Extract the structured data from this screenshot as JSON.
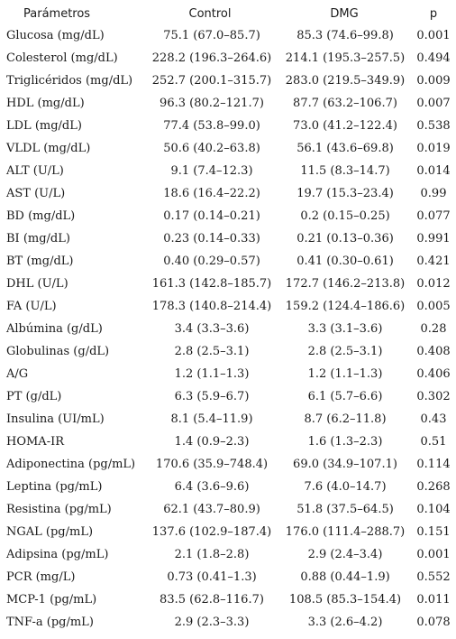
{
  "table": {
    "headers": {
      "param": "Parámetros",
      "control": "Control",
      "dmg": "DMG",
      "p": "p"
    },
    "rows": [
      {
        "param": "Glucosa (mg/dL)",
        "control": "75.1 (67.0–85.7)",
        "dmg": "85.3 (74.6–99.8)",
        "p": "0.001"
      },
      {
        "param": "Colesterol (mg/dL)",
        "control": "228.2 (196.3–264.6)",
        "dmg": "214.1 (195.3–257.5)",
        "p": "0.494"
      },
      {
        "param": "Triglicéridos (mg/dL)",
        "control": "252.7 (200.1–315.7)",
        "dmg": "283.0 (219.5–349.9)",
        "p": "0.009"
      },
      {
        "param": "HDL (mg/dL)",
        "control": "96.3 (80.2–121.7)",
        "dmg": "87.7 (63.2–106.7)",
        "p": "0.007"
      },
      {
        "param": "LDL (mg/dL)",
        "control": "77.4 (53.8–99.0)",
        "dmg": "73.0 (41.2–122.4)",
        "p": "0.538"
      },
      {
        "param": "VLDL (mg/dL)",
        "control": "50.6 (40.2–63.8)",
        "dmg": "56.1 (43.6–69.8)",
        "p": "0.019"
      },
      {
        "param": "ALT (U/L)",
        "control": "9.1 (7.4–12.3)",
        "dmg": "11.5 (8.3–14.7)",
        "p": "0.014"
      },
      {
        "param": "AST (U/L)",
        "control": "18.6 (16.4–22.2)",
        "dmg": "19.7 (15.3–23.4)",
        "p": "0.99"
      },
      {
        "param": "BD (mg/dL)",
        "control": "0.17 (0.14–0.21)",
        "dmg": "0.2 (0.15–0.25)",
        "p": "0.077"
      },
      {
        "param": "BI (mg/dL)",
        "control": "0.23 (0.14–0.33)",
        "dmg": "0.21 (0.13–0.36)",
        "p": "0.991"
      },
      {
        "param": "BT (mg/dL)",
        "control": "0.40 (0.29–0.57)",
        "dmg": "0.41 (0.30–0.61)",
        "p": "0.421"
      },
      {
        "param": "DHL (U/L)",
        "control": "161.3 (142.8–185.7)",
        "dmg": "172.7 (146.2–213.8)",
        "p": "0.012"
      },
      {
        "param": "FA (U/L)",
        "control": "178.3 (140.8–214.4)",
        "dmg": "159.2 (124.4–186.6)",
        "p": "0.005"
      },
      {
        "param": "Albúmina (g/dL)",
        "control": "3.4 (3.3–3.6)",
        "dmg": "3.3 (3.1–3.6)",
        "p": "0.28"
      },
      {
        "param": "Globulinas (g/dL)",
        "control": "2.8 (2.5–3.1)",
        "dmg": "2.8 (2.5–3.1)",
        "p": "0.408"
      },
      {
        "param": "A/G",
        "control": "1.2 (1.1–1.3)",
        "dmg": "1.2 (1.1–1.3)",
        "p": "0.406"
      },
      {
        "param": "PT (g/dL)",
        "control": "6.3 (5.9–6.7)",
        "dmg": "6.1 (5.7–6.6)",
        "p": "0.302"
      },
      {
        "param": "Insulina (UI/mL)",
        "control": "8.1 (5.4–11.9)",
        "dmg": "8.7 (6.2–11.8)",
        "p": "0.43"
      },
      {
        "param": "HOMA-IR",
        "control": "1.4 (0.9–2.3)",
        "dmg": "1.6 (1.3–2.3)",
        "p": "0.51"
      },
      {
        "param": "Adiponectina (pg/mL)",
        "control": "170.6 (35.9–748.4)",
        "dmg": "69.0 (34.9–107.1)",
        "p": "0.114"
      },
      {
        "param": "Leptina (pg/mL)",
        "control": "6.4 (3.6–9.6)",
        "dmg": "7.6 (4.0–14.7)",
        "p": "0.268"
      },
      {
        "param": "Resistina (pg/mL)",
        "control": "62.1 (43.7–80.9)",
        "dmg": "51.8 (37.5–64.5)",
        "p": "0.104"
      },
      {
        "param": "NGAL (pg/mL)",
        "control": "137.6 (102.9–187.4)",
        "dmg": "176.0 (111.4–288.7)",
        "p": "0.151"
      },
      {
        "param": "Adipsina (pg/mL)",
        "control": "2.1 (1.8–2.8)",
        "dmg": "2.9 (2.4–3.4)",
        "p": "0.001"
      },
      {
        "param": "PCR (mg/L)",
        "control": "0.73 (0.41–1.3)",
        "dmg": "0.88 (0.44–1.9)",
        "p": "0.552"
      },
      {
        "param": "MCP-1 (pg/mL)",
        "control": "83.5 (62.8–116.7)",
        "dmg": "108.5 (85.3–154.4)",
        "p": "0.011"
      },
      {
        "param": "TNF-a (pg/mL)",
        "control": "2.9 (2.3–3.3)",
        "dmg": "3.3 (2.6–4.2)",
        "p": "0.078"
      }
    ]
  }
}
